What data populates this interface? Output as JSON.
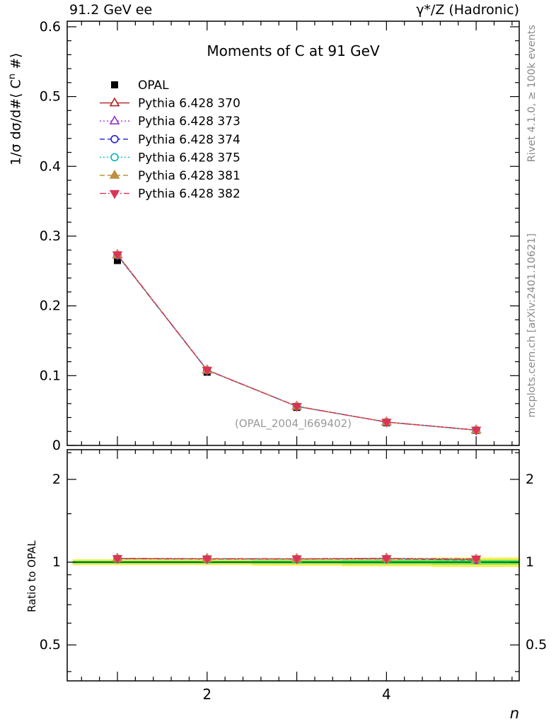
{
  "header": {
    "left": "91.2 GeV ee",
    "right": "γ*/Z (Hadronic)"
  },
  "title": "Moments of C at 91 GeV",
  "ylabel_main": {
    "prefix": "1/σ  dσ/d#⟨ C",
    "sup": "n",
    "suffix": " #⟩"
  },
  "ylabel_ratio": "Ratio to OPAL",
  "xlabel": "n",
  "watermark": "(OPAL_2004_I669402)",
  "side_notes": {
    "top": "Rivet 4.1.0, ≥ 100k events",
    "bottom": "mcplots.cern.ch [arXiv:2401.10621]"
  },
  "chart_data": {
    "type": "line",
    "title": "Moments of C at 91 GeV",
    "xlabel": "n",
    "ylabel": "1/σ dσ/d⟨Cⁿ⟩",
    "ratio_ylabel": "Ratio to OPAL",
    "x": [
      1,
      2,
      3,
      4,
      5
    ],
    "xlim": [
      0.44,
      5.48
    ],
    "ylim": [
      0,
      0.608
    ],
    "ratio_ylim": [
      0.37,
      2.565
    ],
    "ratio_scale": "log",
    "xticks_major": [
      1,
      2,
      3,
      4,
      5
    ],
    "xtick_minor_step": 0.2,
    "xticks_labeled": [
      2,
      4
    ],
    "yticks_major": [
      0,
      0.1,
      0.2,
      0.3,
      0.4,
      0.5,
      0.6
    ],
    "ytick_minor_step": 0.02,
    "ratio_ticks_major": [
      0.5,
      1,
      2
    ],
    "ratio_ticks_minor": [
      0.4,
      0.6,
      0.7,
      0.8,
      0.9,
      1.5,
      2.5
    ],
    "grid": false,
    "legend_position": "upper-left",
    "series": [
      {
        "name": "OPAL",
        "color": "#000000",
        "marker": "square-filled",
        "line": "none",
        "is_ref": true,
        "values": [
          0.265,
          0.105,
          0.0545,
          0.0325,
          0.0215
        ],
        "errors": [
          0.004,
          0.002,
          0.0015,
          0.001,
          0.0008
        ]
      },
      {
        "name": "Pythia 6.428 370",
        "color": "#b02222",
        "marker": "triangle-open",
        "line": "solid",
        "values": [
          0.273,
          0.108,
          0.056,
          0.0335,
          0.022
        ]
      },
      {
        "name": "Pythia 6.428 373",
        "color": "#9933cc",
        "marker": "triangle-open",
        "line": "dotted",
        "values": [
          0.2735,
          0.1082,
          0.0561,
          0.0336,
          0.022
        ]
      },
      {
        "name": "Pythia 6.428 374",
        "color": "#2222cc",
        "marker": "circle-open",
        "line": "dashed",
        "values": [
          0.2725,
          0.1078,
          0.0559,
          0.0334,
          0.0219
        ]
      },
      {
        "name": "Pythia 6.428 375",
        "color": "#00b8b8",
        "marker": "circle-open",
        "line": "dotted",
        "values": [
          0.2728,
          0.1079,
          0.056,
          0.0334,
          0.022
        ]
      },
      {
        "name": "Pythia 6.428 381",
        "color": "#bf8f3f",
        "marker": "triangle-filled",
        "line": "dashed",
        "values": [
          0.2732,
          0.1081,
          0.056,
          0.0335,
          0.022
        ]
      },
      {
        "name": "Pythia 6.428 382",
        "color": "#dd3355",
        "marker": "triangle-down-filled",
        "line": "dashdot",
        "values": [
          0.2734,
          0.108,
          0.0561,
          0.0335,
          0.0221
        ]
      }
    ],
    "band": {
      "yellow_color": "#ffee55",
      "green_color": "#55ee55",
      "yellow": [
        0.025,
        0.025,
        0.03,
        0.035,
        0.04
      ],
      "green": [
        0.012,
        0.012,
        0.015,
        0.018,
        0.02
      ]
    }
  }
}
